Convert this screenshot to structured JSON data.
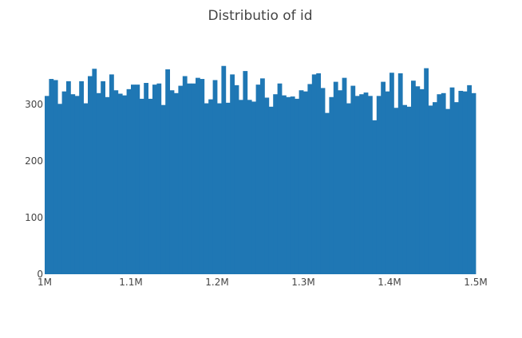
{
  "chart_data": {
    "type": "bar",
    "title": "Distributio of id",
    "xlabel": "",
    "ylabel": "",
    "x_range": [
      1000000,
      1500000
    ],
    "ylim": [
      0,
      400
    ],
    "x_ticks": [
      {
        "value": 1000000,
        "label": "1M"
      },
      {
        "value": 1100000,
        "label": "1.1M"
      },
      {
        "value": 1200000,
        "label": "1.2M"
      },
      {
        "value": 1300000,
        "label": "1.3M"
      },
      {
        "value": 1400000,
        "label": "1.4M"
      },
      {
        "value": 1500000,
        "label": "1.5M"
      }
    ],
    "y_ticks": [
      {
        "value": 0,
        "label": "0"
      },
      {
        "value": 100,
        "label": "100"
      },
      {
        "value": 200,
        "label": "200"
      },
      {
        "value": 300,
        "label": "300"
      }
    ],
    "bin_width": 5000,
    "bin_starts": [
      1000000,
      1005000,
      1010000,
      1015000,
      1020000,
      1025000,
      1030000,
      1035000,
      1040000,
      1045000,
      1050000,
      1055000,
      1060000,
      1065000,
      1070000,
      1075000,
      1080000,
      1085000,
      1090000,
      1095000,
      1100000,
      1105000,
      1110000,
      1115000,
      1120000,
      1125000,
      1130000,
      1135000,
      1140000,
      1145000,
      1150000,
      1155000,
      1160000,
      1165000,
      1170000,
      1175000,
      1180000,
      1185000,
      1190000,
      1195000,
      1200000,
      1205000,
      1210000,
      1215000,
      1220000,
      1225000,
      1230000,
      1235000,
      1240000,
      1245000,
      1250000,
      1255000,
      1260000,
      1265000,
      1270000,
      1275000,
      1280000,
      1285000,
      1290000,
      1295000,
      1300000,
      1305000,
      1310000,
      1315000,
      1320000,
      1325000,
      1330000,
      1335000,
      1340000,
      1345000,
      1350000,
      1355000,
      1360000,
      1365000,
      1370000,
      1375000,
      1380000,
      1385000,
      1390000,
      1395000,
      1400000,
      1405000,
      1410000,
      1415000,
      1420000,
      1425000,
      1430000,
      1435000,
      1440000,
      1445000,
      1450000,
      1455000,
      1460000,
      1465000,
      1470000,
      1475000,
      1480000,
      1485000,
      1490000,
      1495000
    ],
    "values": [
      315,
      345,
      343,
      301,
      323,
      341,
      318,
      315,
      341,
      302,
      350,
      363,
      320,
      341,
      313,
      353,
      325,
      319,
      316,
      327,
      335,
      335,
      310,
      338,
      310,
      335,
      337,
      299,
      362,
      325,
      320,
      333,
      350,
      337,
      337,
      347,
      345,
      302,
      309,
      343,
      302,
      368,
      303,
      353,
      334,
      308,
      359,
      308,
      305,
      335,
      346,
      312,
      296,
      318,
      337,
      316,
      313,
      314,
      310,
      325,
      323,
      336,
      353,
      355,
      329,
      285,
      313,
      340,
      325,
      347,
      302,
      333,
      315,
      318,
      321,
      315,
      272,
      315,
      340,
      323,
      356,
      294,
      355,
      299,
      296,
      342,
      332,
      327,
      364,
      298,
      304,
      318,
      320,
      292,
      330,
      304,
      324,
      323,
      334,
      320
    ]
  }
}
